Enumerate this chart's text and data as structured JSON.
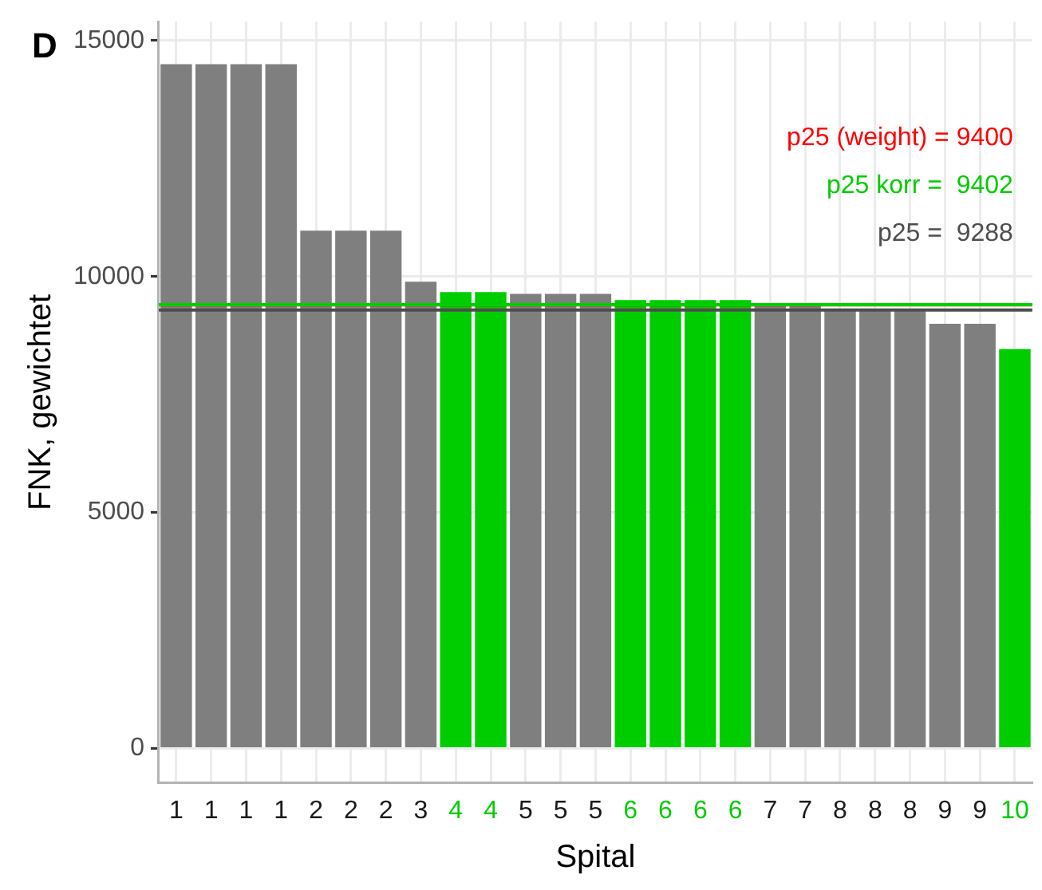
{
  "chart_data": {
    "type": "bar",
    "title": "D",
    "xlabel": "Spital",
    "ylabel": "FNK, gewichtet",
    "categories": [
      "1",
      "1",
      "1",
      "1",
      "2",
      "2",
      "2",
      "3",
      "4",
      "4",
      "5",
      "5",
      "5",
      "6",
      "6",
      "6",
      "6",
      "7",
      "7",
      "8",
      "8",
      "8",
      "9",
      "9",
      "10"
    ],
    "values": [
      14500,
      14500,
      14500,
      14500,
      10970,
      10970,
      10970,
      9890,
      9670,
      9670,
      9630,
      9630,
      9630,
      9500,
      9500,
      9500,
      9500,
      9380,
      9380,
      9270,
      9270,
      9270,
      9000,
      9000,
      8460
    ],
    "color": "#7f7f7f",
    "colors": [
      "#7f7f7f",
      "#7f7f7f",
      "#7f7f7f",
      "#7f7f7f",
      "#7f7f7f",
      "#7f7f7f",
      "#7f7f7f",
      "#7f7f7f",
      "#00cd00",
      "#00cd00",
      "#7f7f7f",
      "#7f7f7f",
      "#7f7f7f",
      "#00cd00",
      "#00cd00",
      "#00cd00",
      "#00cd00",
      "#7f7f7f",
      "#7f7f7f",
      "#7f7f7f",
      "#7f7f7f",
      "#7f7f7f",
      "#7f7f7f",
      "#7f7f7f",
      "#00cd00"
    ],
    "ref_lines": [
      {
        "axis": "y",
        "value": 9400,
        "label": "p25 (weight) = 9400",
        "color": "#ff0000"
      },
      {
        "axis": "y",
        "value": 9402,
        "label": "p25 korr =  9402",
        "color": "#00cd00"
      },
      {
        "axis": "y",
        "value": 9288,
        "label": "p25 =  9288",
        "color": "#4d4d4d"
      }
    ],
    "ylim": [
      -730,
      15400
    ],
    "yticks": [
      0,
      5000,
      10000,
      15000
    ],
    "grid": true,
    "legend": false
  }
}
